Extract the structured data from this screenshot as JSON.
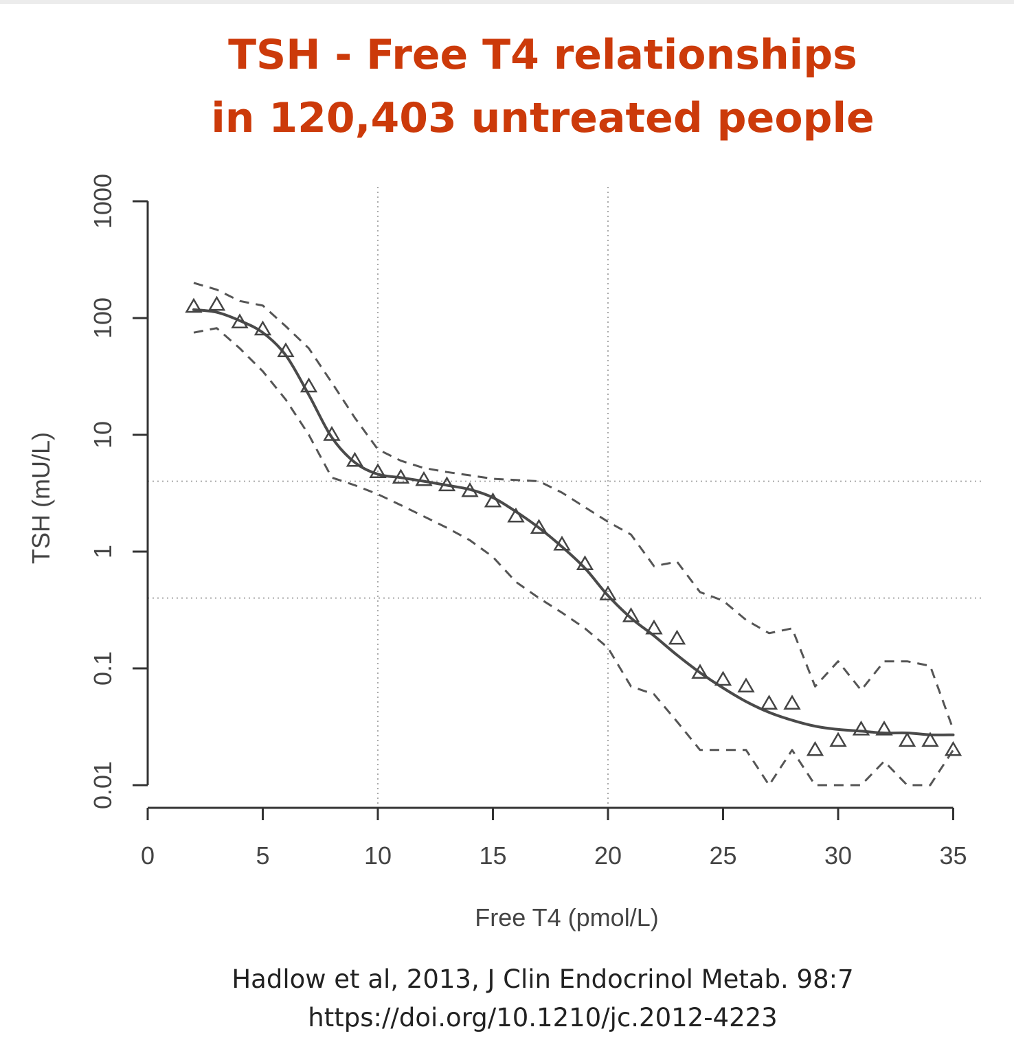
{
  "title": {
    "line1": "TSH - Free T4 relationships",
    "line2": "in 120,403 untreated people"
  },
  "citation": {
    "line1": "Hadlow et al, 2013, J Clin Endocrinol Metab. 98:7",
    "line2": "https://doi.org/10.1210/jc.2012-4223"
  },
  "colors": {
    "title": "#cc3a0a",
    "ink": "#444444",
    "axis": "#333333",
    "grid": "#aaaaaa"
  },
  "chart_data": {
    "type": "scatter",
    "xlabel": "Free T4 (pmol/L)",
    "ylabel": "TSH (mU/L)",
    "xlim": [
      0,
      35
    ],
    "ylim": [
      0.005,
      1000
    ],
    "y_scale": "log",
    "x_ticks": [
      0,
      5,
      10,
      15,
      20,
      25,
      30,
      35
    ],
    "y_ticks": [
      0.01,
      0.1,
      1,
      10,
      100,
      1000
    ],
    "y_tick_labels": [
      "0.01",
      "0.1",
      "1",
      "10",
      "100",
      "1000"
    ],
    "reference_lines": {
      "x": [
        10,
        20
      ],
      "y": [
        4,
        0.4
      ]
    },
    "series": [
      {
        "kind": "points",
        "marker": "triangle",
        "x": [
          2,
          3,
          4,
          5,
          6,
          7,
          8,
          9,
          10,
          11,
          12,
          13,
          14,
          15,
          16,
          17,
          18,
          19,
          20,
          21,
          22,
          23,
          24,
          25,
          26,
          27,
          28,
          29,
          30,
          31,
          32,
          33,
          34,
          35
        ],
        "y": [
          125,
          130,
          92,
          80,
          52,
          26,
          10,
          6,
          4.8,
          4.3,
          4.1,
          3.7,
          3.3,
          2.7,
          2.0,
          1.6,
          1.15,
          0.78,
          0.43,
          0.28,
          0.22,
          0.18,
          0.092,
          0.08,
          0.07,
          0.05,
          0.05,
          0.02,
          0.024,
          0.03,
          0.03,
          0.024,
          0.024,
          0.02
        ]
      },
      {
        "kind": "fit",
        "style": "solid",
        "x": [
          2,
          3,
          4,
          5,
          6,
          7,
          8,
          9,
          10,
          11,
          12,
          13,
          14,
          15,
          16,
          17,
          18,
          19,
          20,
          21,
          22,
          23,
          24,
          25,
          26,
          27,
          28,
          29,
          30,
          31,
          32,
          33,
          34,
          35
        ],
        "y": [
          118,
          112,
          95,
          75,
          48,
          22,
          9.5,
          5.8,
          4.6,
          4.3,
          4.0,
          3.7,
          3.4,
          2.9,
          2.2,
          1.6,
          1.1,
          0.72,
          0.42,
          0.27,
          0.19,
          0.13,
          0.092,
          0.068,
          0.052,
          0.042,
          0.036,
          0.032,
          0.03,
          0.029,
          0.028,
          0.028,
          0.027,
          0.027
        ]
      },
      {
        "kind": "upper",
        "style": "dashed",
        "x": [
          2,
          3,
          4,
          5,
          6,
          7,
          8,
          9,
          10,
          11,
          12,
          13,
          14,
          15,
          16,
          17,
          18,
          19,
          20,
          21,
          22,
          23,
          24,
          25,
          26,
          27,
          28,
          29,
          30,
          31,
          32,
          33,
          34,
          35
        ],
        "y": [
          200,
          175,
          140,
          128,
          85,
          55,
          28,
          14,
          7.5,
          6.0,
          5.2,
          4.8,
          4.5,
          4.2,
          4.1,
          4.0,
          3.2,
          2.4,
          1.8,
          1.4,
          0.75,
          0.82,
          0.45,
          0.38,
          0.26,
          0.2,
          0.22,
          0.07,
          0.115,
          0.065,
          0.115,
          0.115,
          0.105,
          0.03
        ]
      },
      {
        "kind": "lower",
        "style": "dashed",
        "x": [
          2,
          3,
          4,
          5,
          6,
          7,
          8,
          9,
          10,
          11,
          12,
          13,
          14,
          15,
          16,
          17,
          18,
          19,
          20,
          21,
          22,
          23,
          24,
          25,
          26,
          27,
          28,
          29,
          30,
          31,
          32,
          33,
          34,
          35
        ],
        "y": [
          75,
          82,
          55,
          35,
          20,
          10,
          4.3,
          3.7,
          3.1,
          2.5,
          2.0,
          1.6,
          1.25,
          0.9,
          0.55,
          0.4,
          0.3,
          0.22,
          0.15,
          0.07,
          0.06,
          0.035,
          0.02,
          0.02,
          0.02,
          0.01,
          0.02,
          0.01,
          0.01,
          0.01,
          0.016,
          0.01,
          0.01,
          0.02
        ]
      }
    ]
  }
}
